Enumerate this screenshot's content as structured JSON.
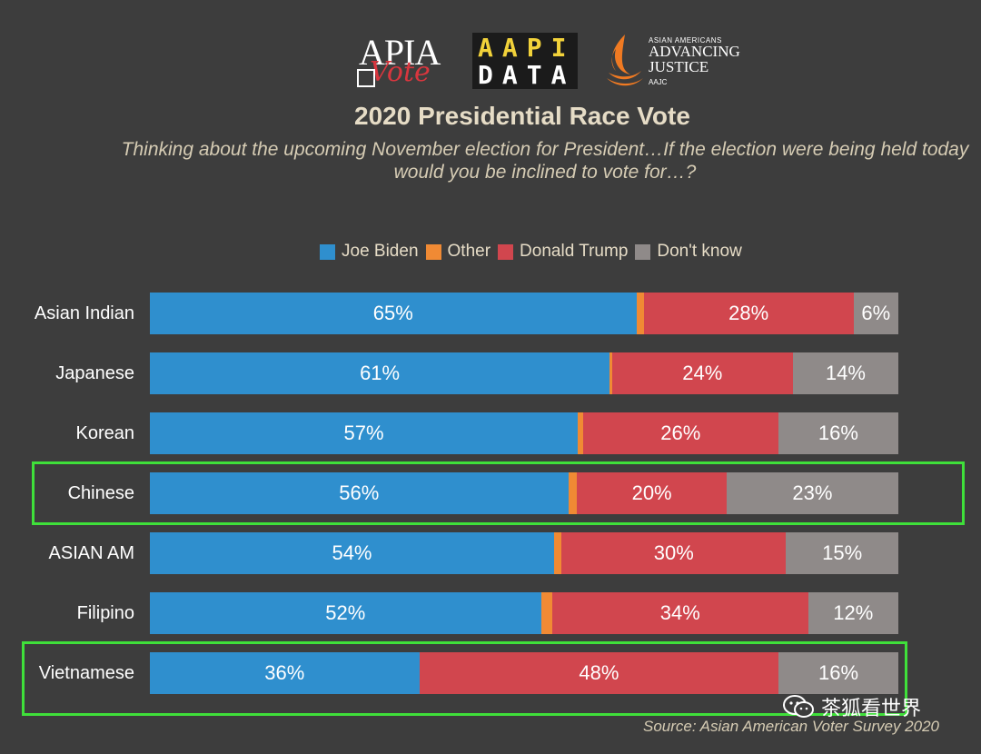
{
  "logos": {
    "apia_top": "APIA",
    "apia_vote": "Vote",
    "aapi_row1": "AAPI",
    "aapi_row2": "DATA",
    "aajc_small": "ASIAN AMERICANS",
    "aajc_line1": "ADVANCING",
    "aajc_line2": "JUSTICE",
    "aajc_tiny": "AAJC"
  },
  "chart_data": {
    "type": "bar",
    "orientation": "horizontal",
    "stacked": true,
    "title": "2020 Presidential Race Vote",
    "subtitle": "Thinking about the upcoming November election for President…If the election were being held today would you be inclined to vote for…?",
    "legend_position": "top",
    "categories": [
      "Asian Indian",
      "Japanese",
      "Korean",
      "Chinese",
      "ASIAN AM",
      "Filipino",
      "Vietnamese"
    ],
    "series": [
      {
        "name": "Joe Biden",
        "color": "#2f8fce",
        "values": [
          65,
          61,
          57,
          56,
          54,
          52,
          36
        ]
      },
      {
        "name": "Other",
        "color": "#f08a34",
        "values": [
          1,
          0.3,
          0.7,
          1.2,
          1,
          1.5,
          0
        ]
      },
      {
        "name": "Donald Trump",
        "color": "#d1464e",
        "values": [
          28,
          24,
          26,
          20,
          30,
          34,
          48
        ]
      },
      {
        "name": "Don't know",
        "color": "#8f8a89",
        "values": [
          6,
          14,
          16,
          23,
          15,
          12,
          16
        ]
      }
    ],
    "data_labels": [
      [
        "65%",
        "",
        "28%",
        "6%"
      ],
      [
        "61%",
        "",
        "24%",
        "14%"
      ],
      [
        "57%",
        "",
        "26%",
        "16%"
      ],
      [
        "56%",
        "",
        "20%",
        "23%"
      ],
      [
        "54%",
        "",
        "30%",
        "15%"
      ],
      [
        "52%",
        "",
        "34%",
        "12%"
      ],
      [
        "36%",
        "",
        "48%",
        "16%"
      ]
    ],
    "highlighted_categories": [
      "Chinese",
      "Vietnamese"
    ],
    "highlight_color": "#3fe03a"
  },
  "watermark": "茶狐看世界",
  "source": "Source: Asian American Voter Survey 2020"
}
